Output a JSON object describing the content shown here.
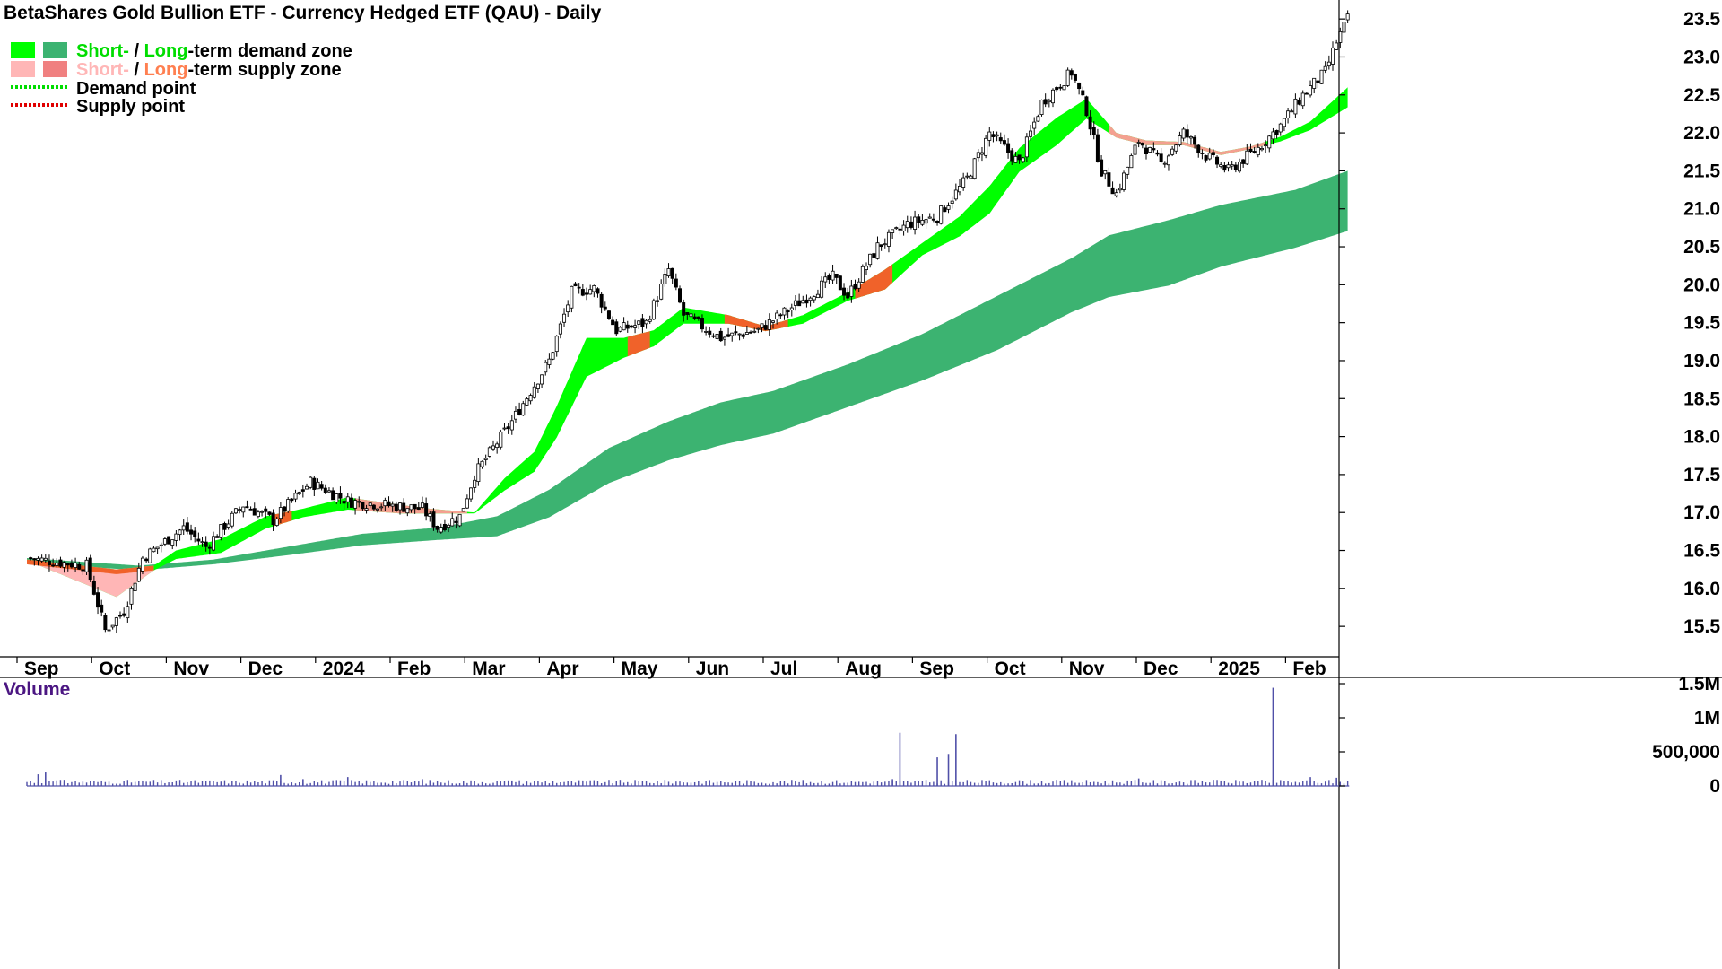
{
  "chart_data": {
    "type": "candlestick",
    "title": "BetaShares Gold Bullion ETF - Currency Hedged ETF (QAU) - Daily",
    "ylim": [
      15.1,
      23.75
    ],
    "y_ticks": [
      15.5,
      16.0,
      16.5,
      17.0,
      17.5,
      18.0,
      18.5,
      19.0,
      19.5,
      20.0,
      20.5,
      21.0,
      21.5,
      22.0,
      22.5,
      23.0,
      23.5
    ],
    "x_ticks": [
      "Sep",
      "Oct",
      "Nov",
      "Dec",
      "2024",
      "Feb",
      "Mar",
      "Apr",
      "May",
      "Jun",
      "Jul",
      "Aug",
      "Sep",
      "Oct",
      "Nov",
      "Dec",
      "2025",
      "Feb"
    ],
    "legend": {
      "placement": "top-left",
      "entries": [
        {
          "parts": [
            {
              "text": "Short-",
              "color": "#00dd00"
            },
            {
              "text": " / ",
              "color": "#000000"
            },
            {
              "text": "Long",
              "color": "#00dd00"
            },
            {
              "text": "-term demand zone",
              "color": "#000000"
            }
          ],
          "swatches": [
            "#00ff00",
            "#3cb371"
          ]
        },
        {
          "parts": [
            {
              "text": "Short-",
              "color": "#ffb6b6"
            },
            {
              "text": " / ",
              "color": "#000000"
            },
            {
              "text": "Long",
              "color": "#ff7f50"
            },
            {
              "text": "-term supply zone",
              "color": "#000000"
            }
          ],
          "swatches": [
            "#ffb6b6",
            "#f08080"
          ]
        },
        {
          "parts": [
            {
              "text": "Demand point",
              "color": "#000000"
            }
          ],
          "line": "#00dd00"
        },
        {
          "parts": [
            {
              "text": "Supply point",
              "color": "#000000"
            }
          ],
          "line": "#e00000"
        }
      ]
    },
    "price_anchors": [
      {
        "m": 0,
        "v": 16.4
      },
      {
        "m": 0.8,
        "v": 16.3
      },
      {
        "m": 1.05,
        "v": 15.45
      },
      {
        "m": 1.3,
        "v": 15.7
      },
      {
        "m": 1.55,
        "v": 16.4
      },
      {
        "m": 2.1,
        "v": 16.8
      },
      {
        "m": 2.4,
        "v": 16.55
      },
      {
        "m": 2.9,
        "v": 17.1
      },
      {
        "m": 3.3,
        "v": 16.9
      },
      {
        "m": 3.8,
        "v": 17.4
      },
      {
        "m": 4.3,
        "v": 17.15
      },
      {
        "m": 5.3,
        "v": 17.05
      },
      {
        "m": 5.5,
        "v": 16.8
      },
      {
        "m": 5.8,
        "v": 16.95
      },
      {
        "m": 6.0,
        "v": 17.5
      },
      {
        "m": 6.5,
        "v": 18.2
      },
      {
        "m": 7.0,
        "v": 19.0
      },
      {
        "m": 7.3,
        "v": 19.9
      },
      {
        "m": 7.6,
        "v": 19.95
      },
      {
        "m": 7.9,
        "v": 19.4
      },
      {
        "m": 8.3,
        "v": 19.5
      },
      {
        "m": 8.6,
        "v": 20.2
      },
      {
        "m": 8.8,
        "v": 19.6
      },
      {
        "m": 9.3,
        "v": 19.3
      },
      {
        "m": 9.8,
        "v": 19.4
      },
      {
        "m": 10.4,
        "v": 19.8
      },
      {
        "m": 10.8,
        "v": 20.1
      },
      {
        "m": 11.0,
        "v": 19.85
      },
      {
        "m": 11.4,
        "v": 20.5
      },
      {
        "m": 11.8,
        "v": 20.8
      },
      {
        "m": 12.2,
        "v": 20.9
      },
      {
        "m": 12.6,
        "v": 21.4
      },
      {
        "m": 12.9,
        "v": 22.0
      },
      {
        "m": 13.3,
        "v": 21.6
      },
      {
        "m": 13.6,
        "v": 22.4
      },
      {
        "m": 14.0,
        "v": 22.8
      },
      {
        "m": 14.2,
        "v": 22.3
      },
      {
        "m": 14.4,
        "v": 21.5
      },
      {
        "m": 14.6,
        "v": 21.2
      },
      {
        "m": 14.9,
        "v": 21.9
      },
      {
        "m": 15.2,
        "v": 21.6
      },
      {
        "m": 15.5,
        "v": 22.0
      },
      {
        "m": 15.8,
        "v": 21.7
      },
      {
        "m": 16.1,
        "v": 21.5
      },
      {
        "m": 16.5,
        "v": 21.8
      },
      {
        "m": 16.8,
        "v": 22.1
      },
      {
        "m": 17.1,
        "v": 22.5
      },
      {
        "m": 17.4,
        "v": 22.8
      },
      {
        "m": 17.55,
        "v": 23.2
      },
      {
        "m": 17.7,
        "v": 23.5
      }
    ],
    "short_zone": [
      {
        "m": 0,
        "a": 16.38,
        "b": 16.38
      },
      {
        "m": 1.2,
        "a": 16.25,
        "b": 15.9
      },
      {
        "m": 1.7,
        "a": 16.3,
        "b": 16.25
      },
      {
        "m": 2.0,
        "a": 16.5,
        "b": 16.4
      },
      {
        "m": 2.6,
        "a": 16.65,
        "b": 16.48
      },
      {
        "m": 3.2,
        "a": 16.95,
        "b": 16.8
      },
      {
        "m": 3.7,
        "a": 17.05,
        "b": 16.95
      },
      {
        "m": 4.3,
        "a": 17.2,
        "b": 17.05
      },
      {
        "m": 5.0,
        "a": 17.1,
        "b": 17.0
      },
      {
        "m": 5.4,
        "a": 17.05,
        "b": 17.0
      },
      {
        "m": 6.0,
        "a": 17.0,
        "b": 17.0
      },
      {
        "m": 6.4,
        "a": 17.45,
        "b": 17.3
      },
      {
        "m": 6.8,
        "a": 17.8,
        "b": 17.55
      },
      {
        "m": 7.1,
        "a": 18.4,
        "b": 18.0
      },
      {
        "m": 7.5,
        "a": 19.3,
        "b": 18.8
      },
      {
        "m": 8.0,
        "a": 19.3,
        "b": 19.05
      },
      {
        "m": 8.4,
        "a": 19.4,
        "b": 19.2
      },
      {
        "m": 8.8,
        "a": 19.7,
        "b": 19.5
      },
      {
        "m": 9.4,
        "a": 19.6,
        "b": 19.5
      },
      {
        "m": 9.9,
        "a": 19.45,
        "b": 19.4
      },
      {
        "m": 10.4,
        "a": 19.6,
        "b": 19.5
      },
      {
        "m": 11.0,
        "a": 19.9,
        "b": 19.8
      },
      {
        "m": 11.5,
        "a": 20.2,
        "b": 19.95
      },
      {
        "m": 12.0,
        "a": 20.55,
        "b": 20.4
      },
      {
        "m": 12.5,
        "a": 20.9,
        "b": 20.65
      },
      {
        "m": 12.9,
        "a": 21.3,
        "b": 20.95
      },
      {
        "m": 13.3,
        "a": 21.8,
        "b": 21.5
      },
      {
        "m": 13.8,
        "a": 22.2,
        "b": 21.85
      },
      {
        "m": 14.2,
        "a": 22.45,
        "b": 22.2
      },
      {
        "m": 14.6,
        "a": 22.0,
        "b": 21.95
      },
      {
        "m": 15.0,
        "a": 21.9,
        "b": 21.85
      },
      {
        "m": 15.5,
        "a": 21.88,
        "b": 21.85
      },
      {
        "m": 16.0,
        "a": 21.75,
        "b": 21.72
      },
      {
        "m": 16.4,
        "a": 21.82,
        "b": 21.8
      },
      {
        "m": 16.8,
        "a": 21.95,
        "b": 21.9
      },
      {
        "m": 17.2,
        "a": 22.15,
        "b": 22.05
      },
      {
        "m": 17.7,
        "a": 22.6,
        "b": 22.35
      }
    ],
    "long_zone": [
      {
        "m": 0,
        "a": 16.4,
        "b": 16.35
      },
      {
        "m": 1.5,
        "a": 16.3,
        "b": 16.25
      },
      {
        "m": 2.5,
        "a": 16.38,
        "b": 16.33
      },
      {
        "m": 3.5,
        "a": 16.55,
        "b": 16.45
      },
      {
        "m": 4.5,
        "a": 16.72,
        "b": 16.58
      },
      {
        "m": 5.5,
        "a": 16.8,
        "b": 16.65
      },
      {
        "m": 6.3,
        "a": 16.95,
        "b": 16.7
      },
      {
        "m": 7.0,
        "a": 17.3,
        "b": 16.95
      },
      {
        "m": 7.8,
        "a": 17.85,
        "b": 17.4
      },
      {
        "m": 8.6,
        "a": 18.2,
        "b": 17.7
      },
      {
        "m": 9.3,
        "a": 18.45,
        "b": 17.9
      },
      {
        "m": 10.0,
        "a": 18.6,
        "b": 18.05
      },
      {
        "m": 11.0,
        "a": 18.95,
        "b": 18.4
      },
      {
        "m": 12.0,
        "a": 19.35,
        "b": 18.75
      },
      {
        "m": 13.0,
        "a": 19.85,
        "b": 19.15
      },
      {
        "m": 14.0,
        "a": 20.35,
        "b": 19.65
      },
      {
        "m": 14.5,
        "a": 20.65,
        "b": 19.85
      },
      {
        "m": 15.3,
        "a": 20.85,
        "b": 20.0
      },
      {
        "m": 16.0,
        "a": 21.05,
        "b": 20.25
      },
      {
        "m": 17.0,
        "a": 21.25,
        "b": 20.5
      },
      {
        "m": 17.7,
        "a": 21.5,
        "b": 20.72
      }
    ],
    "supply_segments": [
      {
        "from": 0.0,
        "to": 1.7,
        "kind": "short",
        "light": true
      },
      {
        "from": 3.3,
        "to": 3.55,
        "kind": "dark"
      },
      {
        "from": 4.4,
        "to": 5.9,
        "kind": "thin"
      },
      {
        "from": 8.05,
        "to": 8.35,
        "kind": "dark"
      },
      {
        "from": 9.35,
        "to": 10.2,
        "kind": "dark"
      },
      {
        "from": 11.1,
        "to": 11.6,
        "kind": "dark"
      },
      {
        "from": 14.5,
        "to": 16.6,
        "kind": "thin"
      }
    ],
    "volume": {
      "label": "Volume",
      "ylim": [
        0,
        1500000
      ],
      "y_ticks": [
        {
          "v": 0,
          "label": "0"
        },
        {
          "v": 500000,
          "label": "500,000"
        },
        {
          "v": 1000000,
          "label": "1M"
        },
        {
          "v": 1500000,
          "label": "1.5M"
        }
      ],
      "color": "#5050a8",
      "spikes": [
        {
          "m": 0.15,
          "v": 170000
        },
        {
          "m": 0.25,
          "v": 210000
        },
        {
          "m": 0.5,
          "v": 90000
        },
        {
          "m": 3.4,
          "v": 160000
        },
        {
          "m": 3.7,
          "v": 100000
        },
        {
          "m": 4.3,
          "v": 130000
        },
        {
          "m": 5.3,
          "v": 100000
        },
        {
          "m": 6.5,
          "v": 80000
        },
        {
          "m": 10.3,
          "v": 75000
        },
        {
          "m": 11.6,
          "v": 100000
        },
        {
          "m": 11.7,
          "v": 780000
        },
        {
          "m": 12.2,
          "v": 420000
        },
        {
          "m": 12.35,
          "v": 470000
        },
        {
          "m": 12.45,
          "v": 760000
        },
        {
          "m": 14.9,
          "v": 110000
        },
        {
          "m": 15.9,
          "v": 90000
        },
        {
          "m": 16.7,
          "v": 1440000
        },
        {
          "m": 17.2,
          "v": 130000
        },
        {
          "m": 17.55,
          "v": 120000
        }
      ]
    }
  }
}
